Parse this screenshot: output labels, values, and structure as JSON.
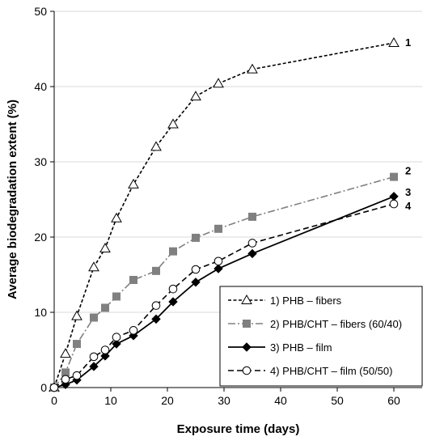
{
  "chart_data": {
    "type": "line",
    "xlabel": "Exposure time (days)",
    "ylabel": "Average biodegradation extent (%)",
    "xlim": [
      0,
      65
    ],
    "ylim": [
      0,
      50
    ],
    "xticks": [
      0,
      10,
      20,
      30,
      40,
      50,
      60
    ],
    "yticks": [
      0,
      10,
      20,
      30,
      40,
      50
    ],
    "grid": "horizontal",
    "legend_position": "bottom-right",
    "series": [
      {
        "name": "1) PHB – fibers",
        "end_label": "1",
        "marker": "open-triangle",
        "line": "short-dash",
        "color": "#000000",
        "x": [
          0,
          2,
          4,
          7,
          9,
          11,
          14,
          18,
          21,
          25,
          29,
          35,
          60
        ],
        "y": [
          0,
          4.5,
          9.5,
          16,
          18.5,
          22.5,
          27,
          32,
          35,
          38.7,
          40.4,
          42.3,
          45.8
        ]
      },
      {
        "name": "2) PHB/CHT – fibers (60/40)",
        "end_label": "2",
        "marker": "filled-square",
        "line": "dash-dot",
        "color": "#808080",
        "x": [
          0,
          2,
          4,
          7,
          9,
          11,
          14,
          18,
          21,
          25,
          29,
          35,
          60
        ],
        "y": [
          0,
          2,
          5.8,
          9.3,
          10.6,
          12.1,
          14.3,
          15.5,
          18.1,
          19.9,
          21.1,
          22.7,
          28
        ]
      },
      {
        "name": "3) PHB – film",
        "end_label": "3",
        "marker": "filled-diamond",
        "line": "solid",
        "color": "#000000",
        "x": [
          0,
          2,
          4,
          7,
          9,
          11,
          14,
          18,
          21,
          25,
          29,
          35,
          60
        ],
        "y": [
          0,
          0.4,
          1,
          2.8,
          4.2,
          5.8,
          6.9,
          9.1,
          11.4,
          14,
          15.8,
          17.8,
          25.4
        ]
      },
      {
        "name": "4) PHB/CHT – film (50/50)",
        "end_label": "4",
        "marker": "open-circle",
        "line": "dash",
        "color": "#000000",
        "x": [
          0,
          2,
          4,
          7,
          9,
          11,
          14,
          18,
          21,
          25,
          29,
          35,
          60
        ],
        "y": [
          0,
          1.1,
          1.6,
          4.1,
          5,
          6.7,
          7.6,
          10.9,
          13.1,
          15.7,
          16.8,
          19.2,
          24.4
        ]
      }
    ]
  }
}
